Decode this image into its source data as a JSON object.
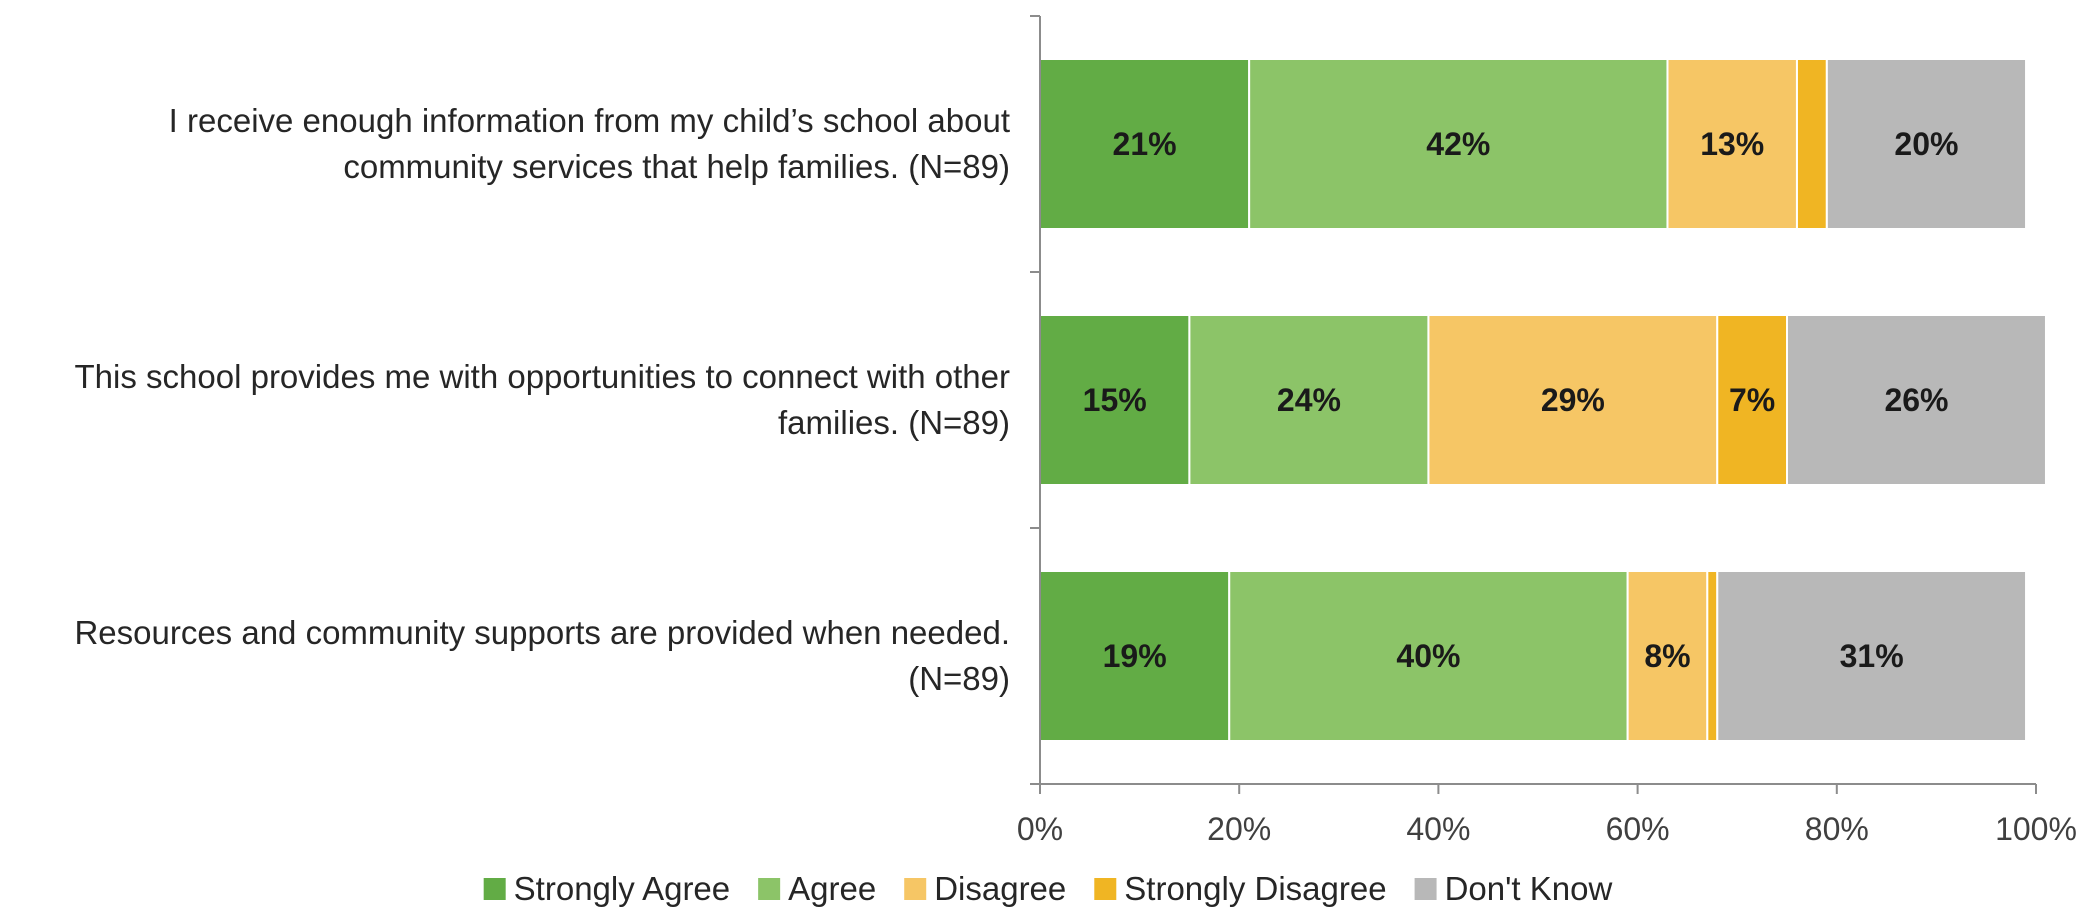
{
  "chart_data": {
    "type": "bar",
    "orientation": "horizontal",
    "stacked": true,
    "categories": [
      [
        "I receive enough information from my child’s school about",
        "community services that help families. (N=89)"
      ],
      [
        "This school provides me with opportunities to connect with other",
        "families. (N=89)"
      ],
      [
        "Resources and community supports are provided when needed.",
        "(N=89)"
      ]
    ],
    "series": [
      {
        "name": "Strongly Agree",
        "color": "#62AC45",
        "values": [
          21,
          15,
          19
        ],
        "labels": [
          "21%",
          "15%",
          "19%"
        ]
      },
      {
        "name": "Agree",
        "color": "#8CC468",
        "values": [
          42,
          24,
          40
        ],
        "labels": [
          "42%",
          "24%",
          "40%"
        ]
      },
      {
        "name": "Disagree",
        "color": "#F6C665",
        "values": [
          13,
          29,
          8
        ],
        "labels": [
          "13%",
          "29%",
          "8%"
        ]
      },
      {
        "name": "Strongly Disagree",
        "color": "#F0B523",
        "values": [
          3,
          7,
          1
        ],
        "labels": [
          "",
          "7%",
          ""
        ]
      },
      {
        "name": "Don't Know",
        "color": "#B8B8B8",
        "values": [
          20,
          26,
          31
        ],
        "labels": [
          "20%",
          "26%",
          "31%"
        ]
      }
    ],
    "xlim": [
      0,
      100
    ],
    "x_ticks": [
      "0%",
      "20%",
      "40%",
      "60%",
      "80%",
      "100%"
    ],
    "grid": false,
    "legend_position": "bottom"
  }
}
